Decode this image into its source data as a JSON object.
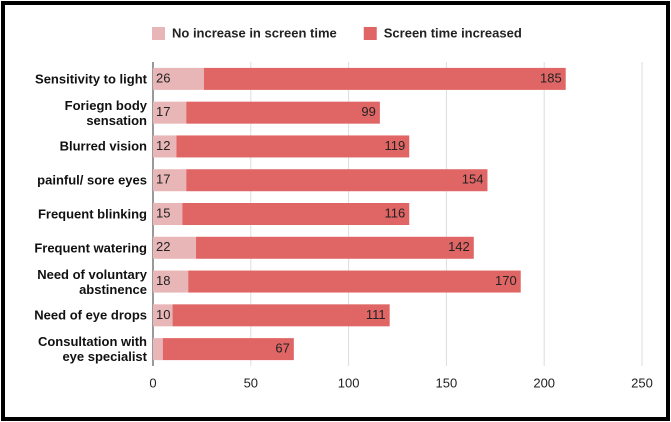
{
  "chart_data": {
    "type": "stacked-bar-horizontal",
    "categories": [
      "Sensitivity to light",
      "Foriegn body sensation",
      "Blurred vision",
      "painful/ sore eyes",
      "Frequent blinking",
      "Frequent watering",
      "Need of voluntary abstinence",
      "Need of eye drops",
      "Consultation with eye specialist"
    ],
    "series": [
      {
        "name": "No increase in screen time",
        "color": "#e8b6b6",
        "values": [
          26,
          17,
          12,
          17,
          15,
          22,
          18,
          10,
          5
        ]
      },
      {
        "name": "Screen time increased",
        "color": "#e06666",
        "values": [
          185,
          99,
          119,
          154,
          116,
          142,
          170,
          111,
          67
        ]
      }
    ],
    "xlim": [
      0,
      250
    ],
    "xticks": [
      0,
      50,
      100,
      150,
      200,
      250
    ],
    "grid": true,
    "legend": "top"
  }
}
